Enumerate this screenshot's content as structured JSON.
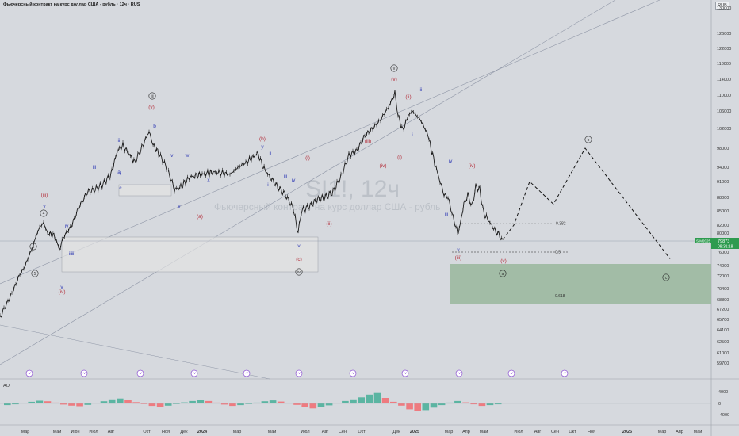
{
  "header": {
    "title": "Фьючерсный контракт на курс доллар США - рубль · 12ч · RUS",
    "currency": "RUB"
  },
  "watermark": {
    "symbol": "SI1!, 12ч",
    "name": "Фьючерсный контракт на курс доллар США - рубль"
  },
  "price_tag": {
    "symbol": "SIM2025",
    "price": "79873",
    "time": "08:31:18"
  },
  "fib_labels": [
    "0.382",
    "0.5",
    "0.618"
  ],
  "oscillator": {
    "name": "AO",
    "ticks": [
      "4000",
      "0",
      "-4000"
    ]
  },
  "colors": {
    "candles": "#1b1b1b",
    "zone": "#9cb8a0",
    "box": "#e2e3e3",
    "price": "#2e9b4f",
    "wave_red": "#b4303c",
    "wave_blue": "#2f3ab4",
    "ao_up": "#5bb5a2",
    "ao_down": "#ee7b80"
  },
  "chart_data": [
    {
      "type": "line",
      "description": "candlestick price chart with Elliott wave annotations",
      "y_ticks": [
        "130000",
        "126000",
        "122000",
        "118000",
        "114000",
        "110000",
        "106000",
        "102000",
        "98000",
        "94000",
        "91000",
        "88000",
        "85000",
        "82000",
        "80000",
        "78000",
        "76000",
        "74000",
        "72000",
        "70400",
        "68800",
        "67200",
        "65700",
        "64100",
        "62500",
        "61000",
        "59700"
      ],
      "x_ticks": [
        "Мар",
        "Май",
        "Июн",
        "Июл",
        "Авг",
        "Окт",
        "Ноя",
        "Дек",
        "2024",
        "Мар",
        "Май",
        "Июл",
        "Авг",
        "Сен",
        "Окт",
        "Дек",
        "2025",
        "Мар",
        "Апр",
        "Май",
        "Июл",
        "Авг",
        "Сен",
        "Окт",
        "Ноя",
        "2026",
        "Мар",
        "Апр",
        "Май"
      ],
      "series": [
        {
          "x": [
            0,
            10,
            20,
            30,
            40,
            50,
            55,
            60,
            68,
            75,
            80,
            90,
            100,
            110,
            120,
            130,
            140,
            148,
            155,
            162,
            170,
            180,
            188,
            192,
            200,
            210,
            220,
            228,
            240,
            255,
            270,
            290,
            300,
            310,
            318,
            325,
            332,
            340,
            350,
            360,
            370,
            376,
            380,
            390,
            400,
            410,
            420,
            430,
            440,
            450,
            460,
            470,
            480,
            490,
            498,
            502,
            508,
            515,
            520,
            530,
            540,
            548,
            555,
            560,
            565,
            570,
            575,
            578,
            585,
            590,
            595,
            600,
            605,
            610,
            618,
            625,
            630,
            634
          ],
          "y": [
            66000,
            68500,
            71000,
            73500,
            76500,
            81500,
            82500,
            80000,
            79500,
            76500,
            79000,
            81800,
            86000,
            89000,
            89500,
            90500,
            92500,
            97500,
            98500,
            97000,
            95000,
            98500,
            101500,
            99000,
            97000,
            94000,
            89500,
            90000,
            92000,
            92500,
            93000,
            92500,
            94000,
            95000,
            96000,
            97000,
            94000,
            92000,
            90000,
            88500,
            85500,
            80000,
            85000,
            86000,
            87500,
            88000,
            89000,
            92000,
            96500,
            97500,
            100500,
            102000,
            104000,
            107000,
            110500,
            105000,
            101500,
            105000,
            106000,
            104000,
            100500,
            95000,
            91000,
            88500,
            88000,
            84500,
            81500,
            80000,
            86500,
            88500,
            86000,
            90000,
            89500,
            84500,
            82500,
            80500,
            79500,
            78500
          ]
        }
      ],
      "projection": {
        "x": [
          634,
          648,
          668,
          698,
          738,
          845
        ],
        "y": [
          78500,
          82000,
          91000,
          86500,
          98000,
          75000
        ]
      },
      "fib_levels": [
        {
          "label": "0.382",
          "value": 82300
        },
        {
          "label": "0.5",
          "value": 76000
        },
        {
          "label": "0.618",
          "value": 69300
        }
      ],
      "wave_labels_red": [
        "(iii)",
        "(iv)",
        "(v)",
        "(a)",
        "(b)",
        "(c)",
        "(i)",
        "(ii)",
        "(iii)",
        "(iv)",
        "(v)",
        "(i)",
        "(ii)",
        "(iii)",
        "(iv)",
        "(v)"
      ],
      "wave_labels_blue": [
        "v",
        "iv",
        "iii",
        "v",
        "ii",
        "i",
        "ii",
        "iii",
        "iv",
        "v",
        "x",
        "w",
        "y",
        "i",
        "ii",
        "iii",
        "iv",
        "v",
        "i",
        "ii",
        "iii",
        "iv",
        "v",
        "c",
        "a",
        "b"
      ],
      "wave_labels_circled": [
        "3",
        "4",
        "5",
        "iii",
        "iv",
        "v",
        "a",
        "b",
        "c"
      ]
    },
    {
      "type": "bar",
      "title": "AO",
      "values": [
        -600,
        -300,
        200,
        600,
        1000,
        800,
        300,
        -400,
        -800,
        -1000,
        -500,
        200,
        800,
        1500,
        1800,
        1200,
        500,
        -200,
        -900,
        -1300,
        -800,
        -200,
        400,
        900,
        1300,
        900,
        300,
        -400,
        -900,
        -600,
        -200,
        300,
        800,
        1100,
        700,
        200,
        -500,
        -1200,
        -1800,
        -1400,
        -700,
        200,
        900,
        1500,
        2200,
        3200,
        3800,
        2000,
        600,
        -800,
        -2100,
        -2800,
        -2400,
        -1500,
        -600,
        300,
        900,
        400,
        -300,
        -900,
        -600,
        -300
      ]
    }
  ]
}
